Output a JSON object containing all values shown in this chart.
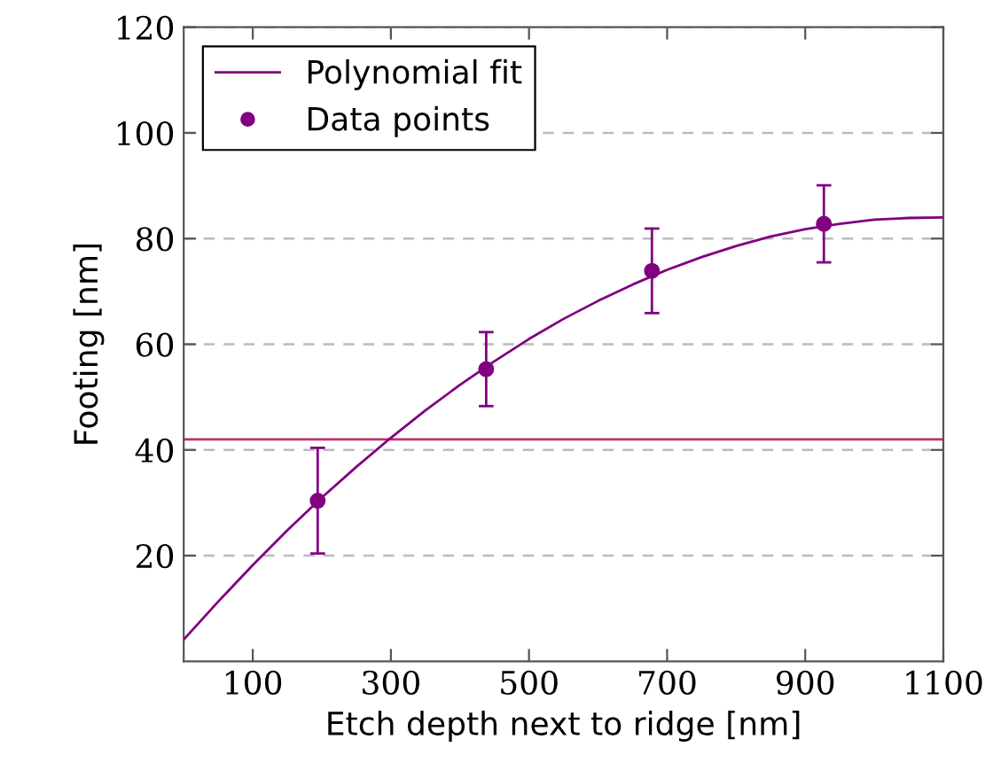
{
  "chart_data": {
    "type": "scatter",
    "xlabel": "Etch depth next to ridge [nm]",
    "ylabel": "Footing [nm]",
    "xlim": [
      0,
      1100
    ],
    "ylim": [
      0,
      120
    ],
    "xticks": [
      100,
      300,
      500,
      700,
      900,
      1100
    ],
    "yticks": [
      20,
      40,
      60,
      80,
      100,
      120
    ],
    "grid": "y",
    "legend": "top left",
    "marker": "circle",
    "series": [
      {
        "name": "Polynomial fit",
        "type": "line",
        "color": "#800080",
        "marker": "none",
        "x": [
          0,
          50,
          100,
          150,
          200,
          250,
          300,
          350,
          400,
          450,
          500,
          550,
          600,
          650,
          700,
          750,
          800,
          850,
          900,
          950,
          1000,
          1050,
          1100
        ],
        "values": [
          4.1,
          11.3,
          18.2,
          24.8,
          31.0,
          36.8,
          42.3,
          47.5,
          52.3,
          56.8,
          61.0,
          64.8,
          68.2,
          71.3,
          74.1,
          76.5,
          78.6,
          80.4,
          81.8,
          82.8,
          83.6,
          83.9,
          84.0
        ]
      },
      {
        "name": "Data points",
        "color": "#800080",
        "x": [
          194,
          438,
          678,
          927
        ],
        "values": [
          30.4,
          55.3,
          73.9,
          82.8
        ],
        "errors": [
          10,
          7,
          8,
          7.3
        ]
      }
    ],
    "ref_lines": [
      {
        "axis": "y",
        "value": 42.0,
        "color": "#c0306a"
      }
    ]
  }
}
